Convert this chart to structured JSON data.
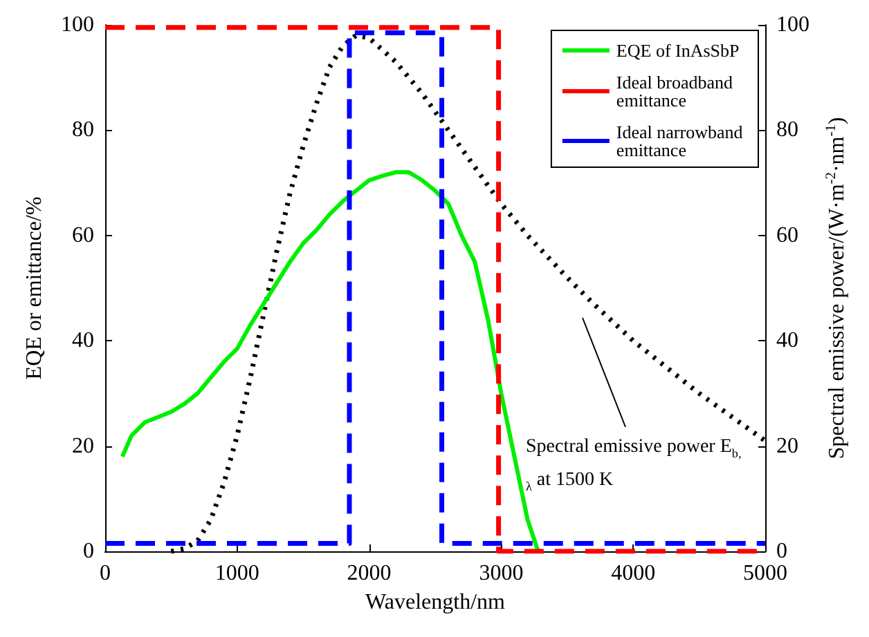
{
  "chart_data": {
    "type": "line",
    "xlabel": "Wavelength/nm",
    "ylabel": "EQE or emittance/%",
    "y2label": "Spectral emissive power/(W·m$^{-2}$·nm$^{-1}$)",
    "xlim": [
      0,
      5000
    ],
    "xticks": [
      0,
      1000,
      2000,
      3000,
      4000,
      5000
    ],
    "ylim": [
      0,
      100
    ],
    "yticks": [
      0,
      20,
      40,
      60,
      80,
      100
    ],
    "y2lim": [
      0,
      100
    ],
    "y2ticks": [
      0,
      20,
      40,
      60,
      80,
      100
    ],
    "grid": false,
    "legend": "top right",
    "marker": "none",
    "annotations": [
      "Spectral emissive power E$_{b, λ}$ at 1500 K"
    ],
    "series": [
      {
        "name": "EQE of InAsSbP",
        "color": "#00ee00",
        "line_style": "solid",
        "x": [
          130,
          200,
          300,
          400,
          500,
          600,
          700,
          800,
          900,
          1000,
          1100,
          1200,
          1300,
          1400,
          1500,
          1600,
          1700,
          1800,
          1900,
          2000,
          2100,
          2200,
          2300,
          2400,
          2500,
          2600,
          2700,
          2800,
          2900,
          3000,
          3100,
          3200,
          3280
        ],
        "values": [
          18,
          22,
          24.5,
          25.5,
          26.5,
          28,
          30,
          33,
          36,
          38.5,
          43,
          47,
          51,
          55,
          58.5,
          61,
          64,
          66.5,
          68.5,
          70.5,
          71.3,
          72,
          72,
          70.5,
          68.5,
          66,
          60,
          55,
          44,
          30,
          18,
          6,
          0
        ]
      },
      {
        "name": "Ideal broadband emittance",
        "color": "#ff0000",
        "line_style": "dashed",
        "x": [
          0,
          2980,
          2980,
          5000
        ],
        "values": [
          99.5,
          99.5,
          0,
          0
        ]
      },
      {
        "name": "Ideal narrowband emittance",
        "color": "#0000ff",
        "line_style": "dashed",
        "x": [
          0,
          1850,
          1850,
          2550,
          2550,
          5000
        ],
        "values": [
          1.5,
          1.5,
          98.5,
          98.5,
          1.5,
          1.5
        ]
      },
      {
        "color": "#000000",
        "line_style": "dotted",
        "axis": "y2",
        "x": [
          500,
          600,
          700,
          800,
          900,
          1000,
          1100,
          1200,
          1300,
          1400,
          1500,
          1600,
          1700,
          1800,
          1900,
          2000,
          2200,
          2400,
          2600,
          2800,
          3000,
          3200,
          3500,
          3700,
          4000,
          4500,
          5000
        ],
        "values": [
          0,
          0.5,
          2,
          6,
          13,
          22,
          33,
          45,
          57,
          68,
          77,
          85,
          92,
          96,
          98,
          97.5,
          93,
          87,
          80,
          73,
          66,
          60,
          52,
          47,
          40,
          30,
          21
        ]
      }
    ]
  }
}
